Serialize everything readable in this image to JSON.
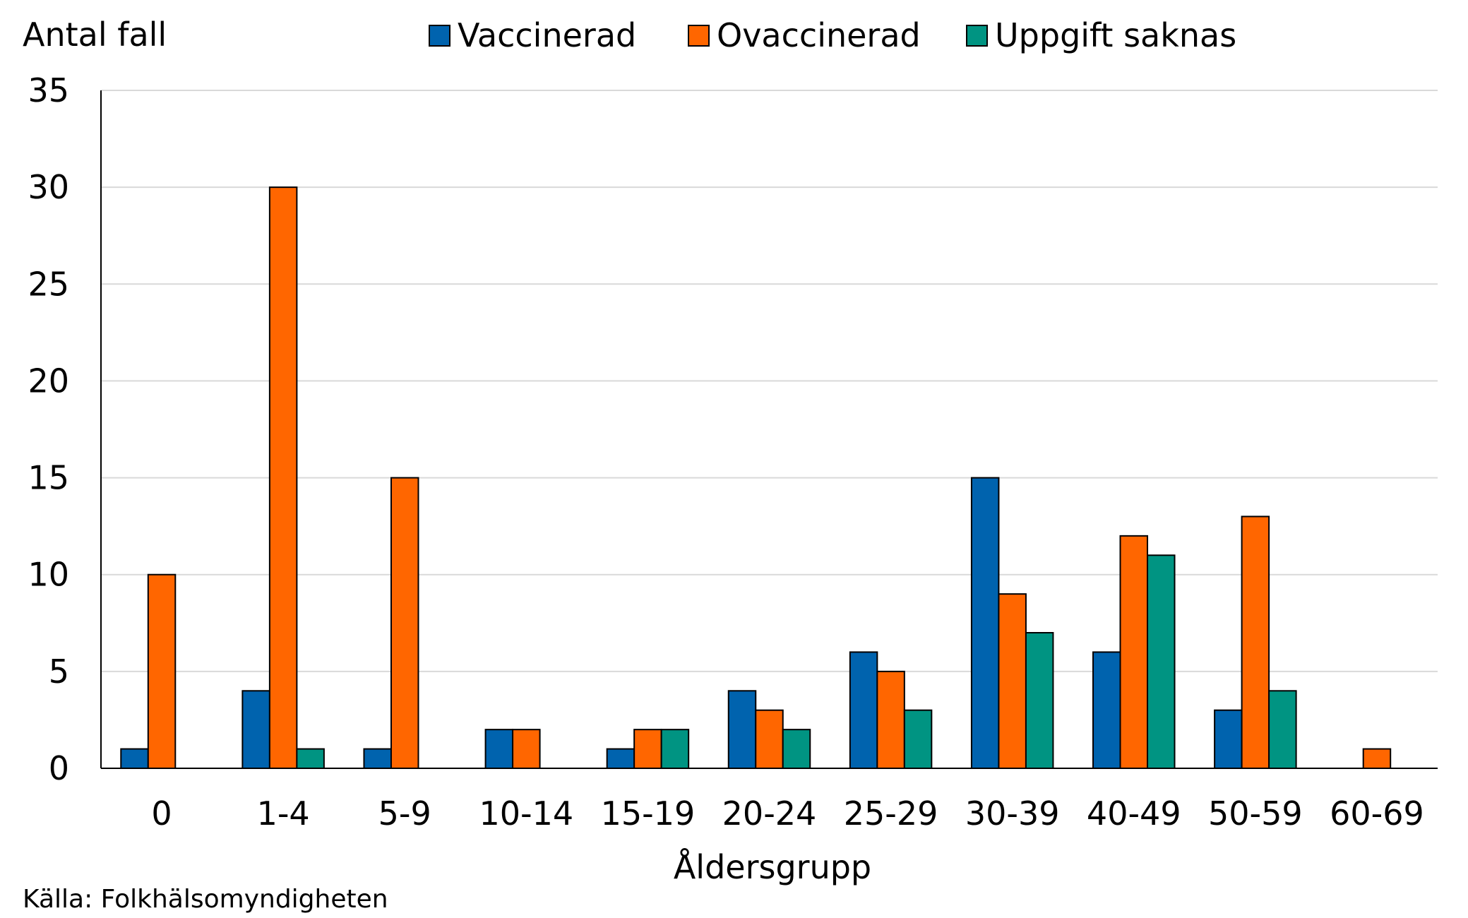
{
  "chart_data": {
    "type": "bar",
    "title": "",
    "ylabel": "Antal fall",
    "xlabel": "Åldersgrupp",
    "source": "Källa: Folkhälsomyndigheten",
    "categories": [
      "0",
      "1-4",
      "5-9",
      "10-14",
      "15-19",
      "20-24",
      "25-29",
      "30-39",
      "40-49",
      "50-59",
      "60-69"
    ],
    "series": [
      {
        "name": "Vaccinerad",
        "color": "#0063AE",
        "values": [
          1,
          4,
          1,
          2,
          1,
          4,
          6,
          15,
          6,
          3,
          0
        ]
      },
      {
        "name": "Ovaccinerad",
        "color": "#FF6600",
        "values": [
          10,
          30,
          15,
          2,
          2,
          3,
          5,
          9,
          12,
          13,
          1
        ]
      },
      {
        "name": "Uppgift saknas",
        "color": "#009482",
        "values": [
          0,
          1,
          0,
          0,
          2,
          2,
          3,
          7,
          11,
          4,
          0
        ]
      }
    ],
    "ylim": [
      0,
      35
    ],
    "yticks": [
      0,
      5,
      10,
      15,
      20,
      25,
      30,
      35
    ],
    "grid": true,
    "legend_position": "top"
  }
}
